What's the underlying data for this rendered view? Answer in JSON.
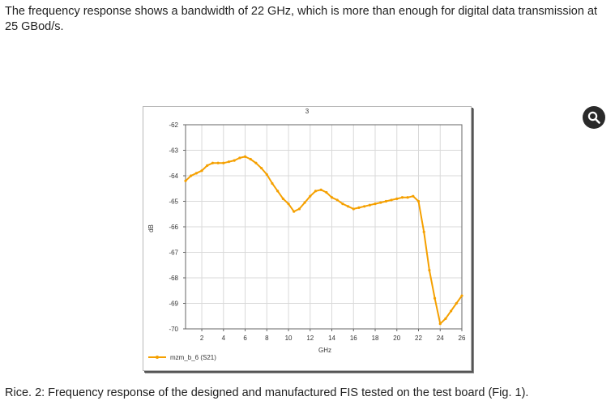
{
  "intro_text": "The frequency response shows a bandwidth of 22 GHz, which is more than enough for digital data transmission at 25 GBod/s.",
  "caption_text": "Rice. 2: Frequency response of the designed and manufactured FIS tested on the test board (Fig. 1).",
  "zoom_icon": "magnifier-icon",
  "colors": {
    "series": "#f5a000",
    "text": "#222222"
  },
  "chart_data": {
    "type": "line",
    "title": "3",
    "xlabel": "GHz",
    "ylabel": "dB",
    "xlim": [
      0.5,
      26
    ],
    "ylim": [
      -70,
      -62
    ],
    "x_ticks": [
      2,
      4,
      6,
      8,
      10,
      12,
      14,
      16,
      18,
      20,
      22,
      24,
      26
    ],
    "y_ticks": [
      -62,
      -63,
      -64,
      -65,
      -66,
      -67,
      -68,
      -69,
      -70
    ],
    "grid": true,
    "legend_position": "bottom-left",
    "series": [
      {
        "name": "mzm_b_6 (S21)",
        "x": [
          0.5,
          1,
          1.5,
          2,
          2.5,
          3,
          3.5,
          4,
          4.5,
          5,
          5.5,
          6,
          6.5,
          7,
          7.5,
          8,
          8.5,
          9,
          9.5,
          10,
          10.5,
          11,
          11.5,
          12,
          12.5,
          13,
          13.5,
          14,
          14.5,
          15,
          15.5,
          16,
          16.5,
          17,
          17.5,
          18,
          18.5,
          19,
          19.5,
          20,
          20.5,
          21,
          21.5,
          22,
          22.5,
          23,
          23.5,
          24,
          24.5,
          25,
          25.5,
          26
        ],
        "values": [
          -64.2,
          -64.0,
          -63.9,
          -63.8,
          -63.6,
          -63.5,
          -63.5,
          -63.5,
          -63.45,
          -63.4,
          -63.3,
          -63.25,
          -63.35,
          -63.5,
          -63.7,
          -63.95,
          -64.3,
          -64.6,
          -64.9,
          -65.1,
          -65.4,
          -65.3,
          -65.05,
          -64.8,
          -64.6,
          -64.55,
          -64.65,
          -64.85,
          -64.95,
          -65.1,
          -65.2,
          -65.3,
          -65.25,
          -65.2,
          -65.15,
          -65.1,
          -65.05,
          -65.0,
          -64.95,
          -64.9,
          -64.85,
          -64.85,
          -64.8,
          -65.0,
          -66.2,
          -67.7,
          -68.8,
          -69.8,
          -69.6,
          -69.3,
          -69.0,
          -68.7
        ]
      }
    ]
  }
}
